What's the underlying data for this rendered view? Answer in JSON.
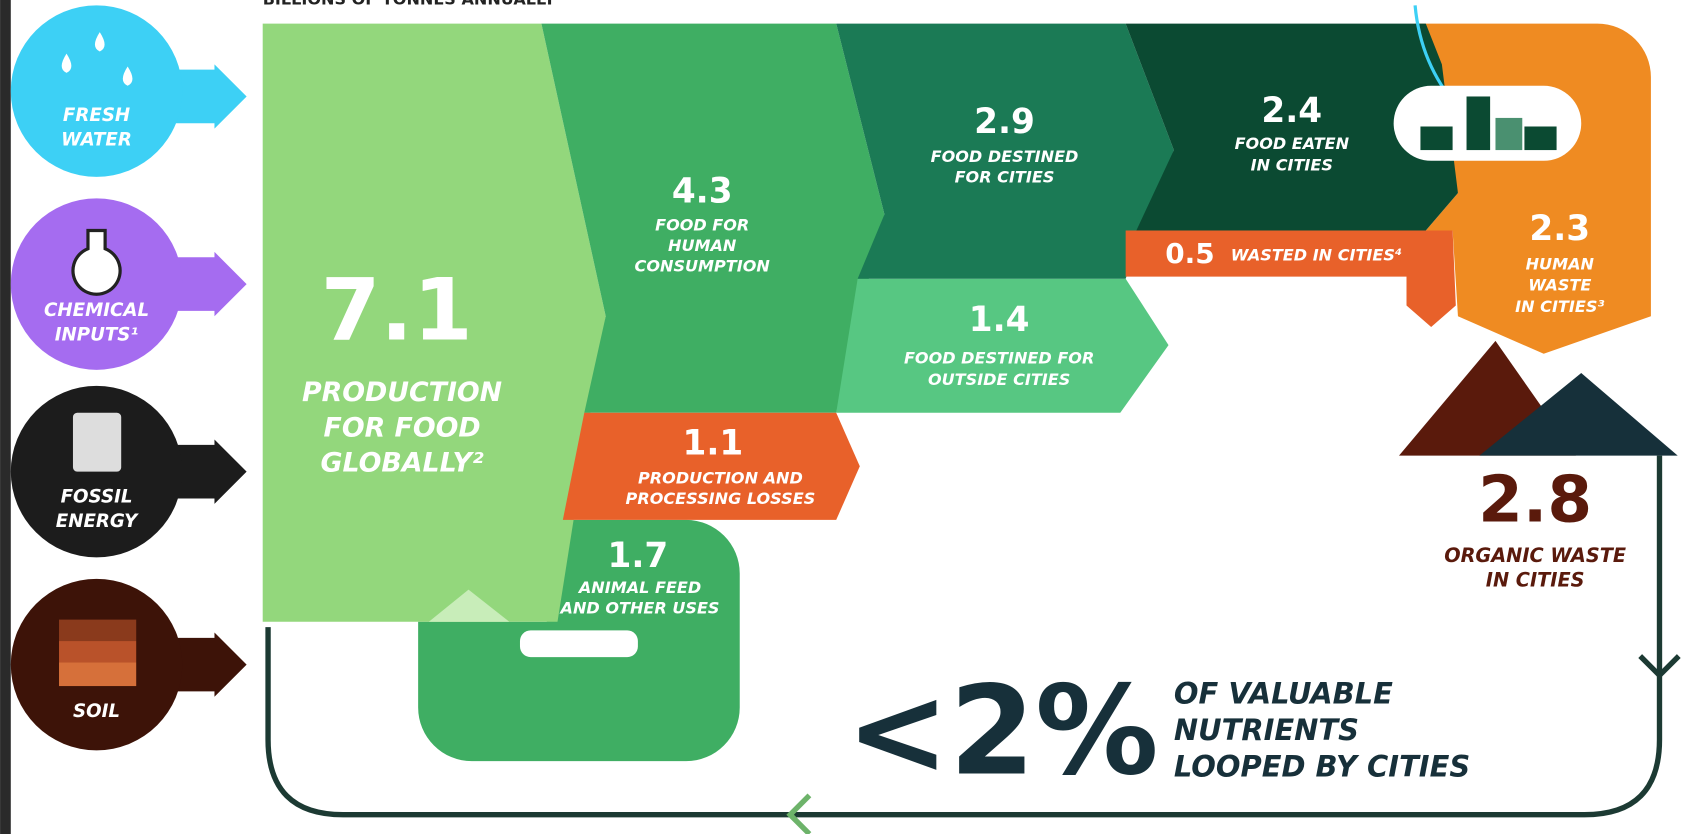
{
  "header": {
    "subtitle": "BILLIONS OF TONNES ANNUALLY"
  },
  "inputs": [
    {
      "label": [
        "FRESH",
        "WATER"
      ]
    },
    {
      "label": [
        "CHEMICAL",
        "INPUTS¹"
      ]
    },
    {
      "label": [
        "FOSSIL",
        "ENERGY"
      ]
    },
    {
      "label": [
        "SOIL"
      ]
    }
  ],
  "flows": [
    {
      "value": 7.1,
      "label": [
        "PRODUCTION",
        "FOR FOOD",
        "GLOBALLY²"
      ]
    },
    {
      "value": 4.3,
      "label": [
        "FOOD FOR",
        "HUMAN",
        "CONSUMPTION"
      ]
    },
    {
      "value": 2.9,
      "label": [
        "FOOD DESTINED",
        "FOR CITIES"
      ]
    },
    {
      "value": 2.4,
      "label": [
        "FOOD EATEN",
        "IN CITIES"
      ]
    },
    {
      "value": 1.4,
      "label": [
        "FOOD DESTINED FOR",
        "OUTSIDE CITIES"
      ]
    },
    {
      "value": 1.1,
      "label": [
        "PRODUCTION AND",
        "PROCESSING LOSSES"
      ]
    },
    {
      "value": 1.7,
      "label": [
        "ANIMAL FEED",
        "AND OTHER USES"
      ]
    },
    {
      "value": 0.5,
      "label": [
        "WASTED IN CITIES⁴"
      ]
    },
    {
      "value": 2.3,
      "label": [
        "HUMAN",
        "WASTE",
        "IN CITIES³"
      ]
    },
    {
      "value": 2.8,
      "label": [
        "ORGANIC WASTE",
        "IN CITIES"
      ]
    }
  ],
  "loop": {
    "value": "<2%",
    "label": [
      "OF VALUABLE",
      "NUTRIENTS",
      "LOOPED BY CITIES"
    ]
  }
}
